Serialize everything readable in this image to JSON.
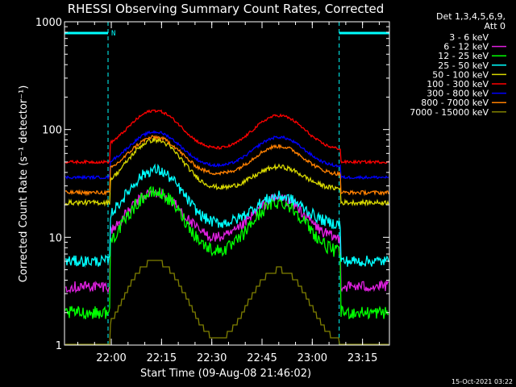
{
  "chart_data": {
    "type": "line",
    "title": "RHESSI Observing Summary Count Rates, Corrected",
    "xlabel": "Start Time (09-Aug-08 21:46:02)",
    "ylabel": "Corrected Count Rate (s⁻¹ detector⁻¹)",
    "x_unit": "minutes after 21:46:02",
    "xlim": [
      0,
      97
    ],
    "ylim": [
      1,
      1000
    ],
    "yscale": "log",
    "xticks": [
      {
        "label": "22:00",
        "x": 13.97
      },
      {
        "label": "22:15",
        "x": 28.97
      },
      {
        "label": "22:30",
        "x": 43.97
      },
      {
        "label": "22:45",
        "x": 58.97
      },
      {
        "label": "23:00",
        "x": 73.97
      },
      {
        "label": "23:15",
        "x": 88.97
      }
    ],
    "yticks": [
      {
        "label": "1",
        "v": 1
      },
      {
        "label": "10",
        "v": 10
      },
      {
        "label": "100",
        "v": 100
      },
      {
        "label": "1000",
        "v": 1000
      }
    ],
    "legend": {
      "title": [
        "Det 1,3,4,5,6,9,",
        "Att 0"
      ],
      "position": "right"
    },
    "series": [
      {
        "name": "3 - 6 keV",
        "color": "#000000",
        "edge": 2,
        "base": 5,
        "peak1": 18,
        "peak2": 16,
        "noise": 0.18
      },
      {
        "name": "6 - 12 keV",
        "color": "#e020e0",
        "edge": 3.5,
        "base": 9.5,
        "peak1": 26,
        "peak2": 23,
        "noise": 0.12
      },
      {
        "name": "12 - 25 keV",
        "color": "#00ff00",
        "edge": 2,
        "base": 7,
        "peak1": 26,
        "peak2": 21,
        "noise": 0.14
      },
      {
        "name": "25 - 50 keV",
        "color": "#00ffff",
        "edge": 6,
        "base": 13,
        "peak1": 42,
        "peak2": 24,
        "noise": 0.12
      },
      {
        "name": "50 - 100 keV",
        "color": "#d8d800",
        "edge": 21,
        "base": 28,
        "peak1": 80,
        "peak2": 45,
        "noise": 0.05
      },
      {
        "name": "100 - 300 keV",
        "color": "#ff0000",
        "edge": 50,
        "base": 65,
        "peak1": 150,
        "peak2": 135,
        "noise": 0.03
      },
      {
        "name": "300 - 800 keV",
        "color": "#0000ff",
        "edge": 36,
        "base": 45,
        "peak1": 95,
        "peak2": 85,
        "noise": 0.03
      },
      {
        "name": "800 - 7000 keV",
        "color": "#ff8000",
        "edge": 26,
        "base": 38,
        "peak1": 85,
        "peak2": 70,
        "noise": 0.04
      },
      {
        "name": "7000 - 15000 keV",
        "color": "#808000",
        "edge": 1,
        "base": 1,
        "peak1": 6,
        "peak2": 5,
        "noise": 0.0
      }
    ],
    "saa_markers": [
      {
        "x_start": 0,
        "x_end": 13,
        "label": "N"
      },
      {
        "x_start": 82,
        "x_end": 97,
        "label": ""
      }
    ]
  },
  "footer": {
    "date_stamp": "15-Oct-2021 03:22"
  }
}
